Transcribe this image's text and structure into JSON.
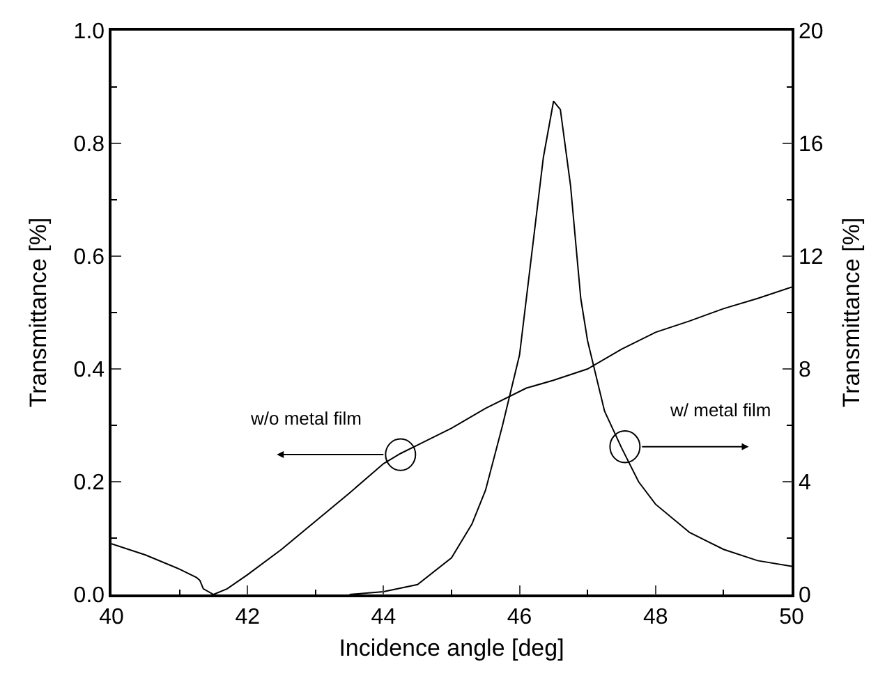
{
  "chart_data": {
    "type": "line",
    "xlabel": "Incidence angle [deg]",
    "ylabel": "Transmittance [%]",
    "y2label": "Transmittance [%]",
    "xlim": [
      40,
      50
    ],
    "xticks": [
      40,
      42,
      44,
      46,
      48,
      50
    ],
    "ylim": [
      0,
      1.0
    ],
    "yticks": [
      {
        "value": 0,
        "label": "0.0"
      },
      0.2,
      0.4,
      0.6,
      0.8,
      {
        "value": 1,
        "label": "1.0"
      }
    ],
    "y2lim": [
      0,
      20
    ],
    "y2ticks": [
      0,
      4,
      8,
      12,
      16,
      20
    ],
    "legend": false,
    "marker": "none",
    "line_style": "solid",
    "series": [
      {
        "color": "#000000",
        "x": [
          40,
          40.5,
          41,
          41.25,
          41.3,
          41.35,
          41.5,
          41.7,
          42,
          42.5,
          43,
          43.5,
          44,
          44.25,
          44.5,
          45,
          45.5,
          46.1,
          46.5,
          47,
          47.5,
          48,
          48.5,
          49,
          49.5,
          50
        ],
        "values": [
          0.09,
          0.07,
          0.045,
          0.03,
          0.025,
          0.01,
          0.0,
          0.01,
          0.035,
          0.08,
          0.13,
          0.18,
          0.232,
          0.25,
          0.265,
          0.295,
          0.33,
          0.366,
          0.38,
          0.4,
          0.435,
          0.465,
          0.485,
          0.507,
          0.525,
          0.545
        ]
      },
      {
        "color": "#000000",
        "axis": "y2",
        "x": [
          43.5,
          44,
          44.5,
          45,
          45.3,
          45.5,
          45.75,
          46,
          46.2,
          46.35,
          46.5,
          46.6,
          46.75,
          46.9,
          47,
          47.25,
          47.5,
          47.75,
          48,
          48.5,
          49,
          49.5,
          50
        ],
        "values": [
          0.0,
          0.1,
          0.35,
          1.3,
          2.5,
          3.7,
          6,
          8.5,
          12.5,
          15.5,
          17.5,
          17.2,
          14.5,
          10.5,
          9,
          6.5,
          5.2,
          4,
          3.2,
          2.2,
          1.6,
          1.2,
          1.0
        ]
      }
    ],
    "annotations": [
      {
        "text": "w/o metal film",
        "x": 44.25,
        "y": 0.248
      },
      {
        "text": "w/ metal film",
        "x": 47.55,
        "y": 0.262
      }
    ]
  }
}
